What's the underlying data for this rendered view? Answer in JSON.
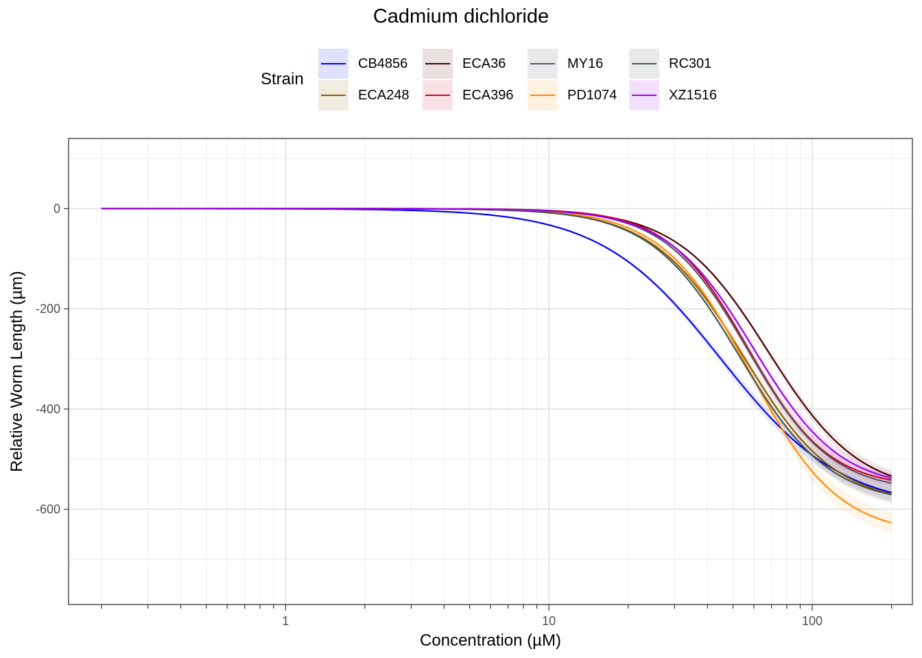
{
  "chart_data": {
    "type": "line",
    "title": "Cadmium dichloride",
    "xlabel": "Concentration (µM)",
    "ylabel": "Relative Worm Length (µm)",
    "xscale": "log10",
    "xlim": [
      0.15,
      240
    ],
    "ylim": [
      -790,
      140
    ],
    "x_ticks": [
      {
        "value": 1,
        "label": "1"
      },
      {
        "value": 10,
        "label": "10"
      },
      {
        "value": 100,
        "label": "100"
      }
    ],
    "y_ticks": [
      {
        "value": 0,
        "label": "0"
      },
      {
        "value": -200,
        "label": "-200"
      },
      {
        "value": -400,
        "label": "-400"
      },
      {
        "value": -600,
        "label": "-600"
      }
    ],
    "x_range": [
      0.2,
      200
    ],
    "grid": true,
    "legend": {
      "title": "Strain",
      "position": "top"
    },
    "series": [
      {
        "name": "CB4856",
        "color": "#0000ff",
        "top": -600,
        "ec50": 45,
        "hill": 1.9,
        "ci": 18
      },
      {
        "name": "ECA248",
        "color": "#8b5a00",
        "top": -592,
        "ec50": 55,
        "hill": 2.5,
        "ci": 20
      },
      {
        "name": "ECA36",
        "color": "#4a0000",
        "top": -570,
        "ec50": 68,
        "hill": 2.5,
        "ci": 14
      },
      {
        "name": "ECA396",
        "color": "#cc0022",
        "top": -557,
        "ec50": 57,
        "hill": 2.85,
        "ci": 14
      },
      {
        "name": "MY16",
        "color": "#55556a",
        "top": -565,
        "ec50": 57,
        "hill": 2.75,
        "ci": 16
      },
      {
        "name": "PD1074",
        "color": "#ff8c00",
        "top": -652,
        "ec50": 58,
        "hill": 2.6,
        "ci": 22
      },
      {
        "name": "RC301",
        "color": "#4b5a4b",
        "top": -590,
        "ec50": 53,
        "hill": 2.55,
        "ci": 14
      },
      {
        "name": "XZ1516",
        "color": "#9b00ee",
        "top": -560,
        "ec50": 60,
        "hill": 2.65,
        "ci": 14
      }
    ]
  }
}
